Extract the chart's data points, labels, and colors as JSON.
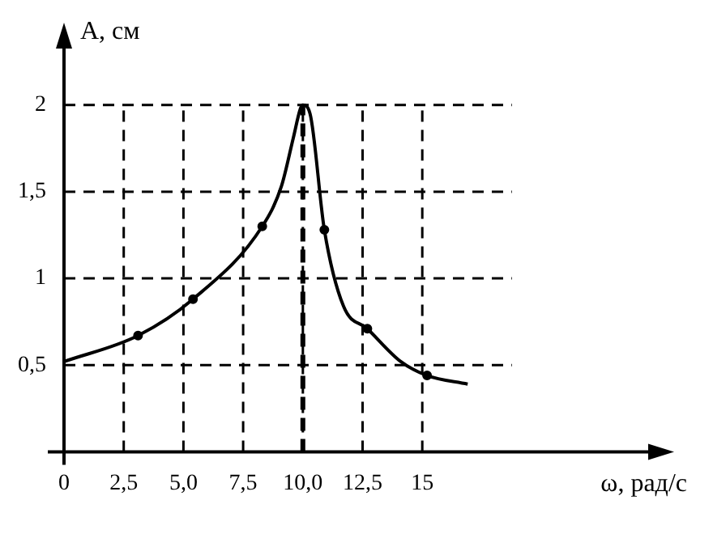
{
  "chart_data": {
    "type": "line",
    "xlabel": "ω, рад/с",
    "ylabel": "A, см",
    "series": [
      {
        "color": "#000000",
        "marker": "none",
        "x": [
          0,
          3.1,
          5.4,
          8.3,
          9.1,
          9.6,
          9.9,
          10,
          10.3,
          10.9,
          11.7,
          12.7,
          14.1,
          15.2,
          16.9
        ],
        "values": [
          0.52,
          0.67,
          0.88,
          1.3,
          1.53,
          1.81,
          1.98,
          2.0,
          1.95,
          1.28,
          0.84,
          0.71,
          0.52,
          0.44,
          0.39
        ]
      },
      {
        "type": "scatter",
        "color": "#000000",
        "marker": "circle",
        "x": [
          3.1,
          5.4,
          8.3,
          10.9,
          12.7,
          15.2
        ],
        "values": [
          0.67,
          0.88,
          1.3,
          1.28,
          0.71,
          0.44
        ]
      }
    ],
    "xlim": [
      0,
      25
    ],
    "ylim": [
      0,
      2.4
    ],
    "xticks": [
      {
        "value": 0,
        "label": "0"
      },
      {
        "value": 2.5,
        "label": "2,5"
      },
      {
        "value": 5,
        "label": "5,0"
      },
      {
        "value": 7.5,
        "label": "7,5"
      },
      {
        "value": 10,
        "label": "10,0"
      },
      {
        "value": 12.5,
        "label": "12,5"
      },
      15
    ],
    "yticks": [
      {
        "value": 0.5,
        "label": "0,5"
      },
      1,
      {
        "value": 1.5,
        "label": "1,5"
      },
      2
    ],
    "ref_lines": [
      {
        "axis": "x",
        "value": 10,
        "label": null,
        "line_style": "dashed"
      }
    ],
    "grid": true,
    "legend": false
  }
}
